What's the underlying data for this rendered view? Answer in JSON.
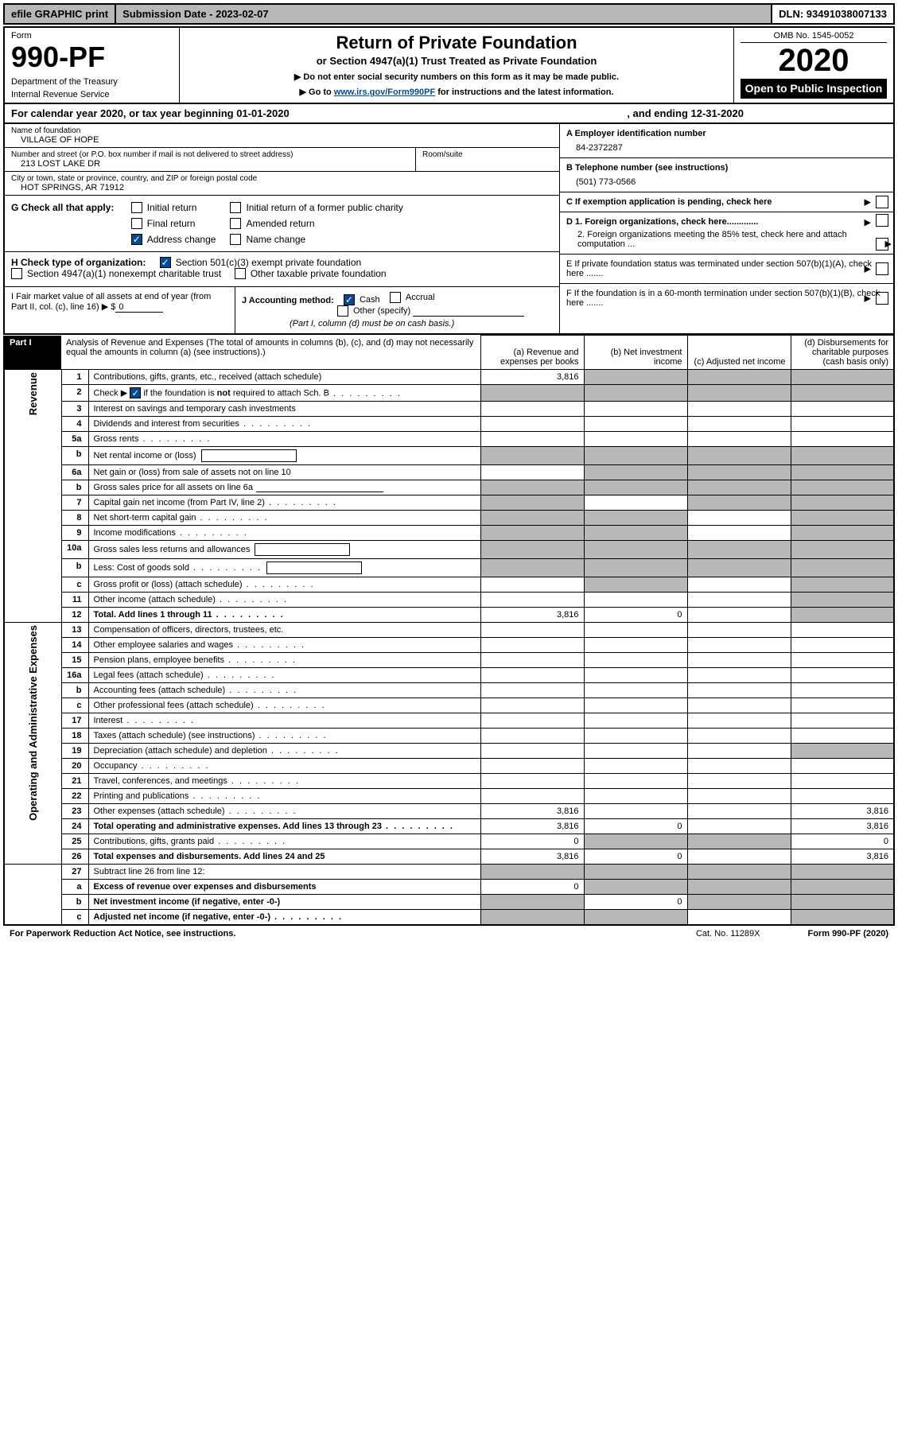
{
  "topbar": {
    "efile": "efile GRAPHIC print",
    "submission": "Submission Date - 2023-02-07",
    "dln": "DLN: 93491038007133"
  },
  "header": {
    "form_label": "Form",
    "form_number": "990-PF",
    "dept1": "Department of the Treasury",
    "dept2": "Internal Revenue Service",
    "title": "Return of Private Foundation",
    "subtitle": "or Section 4947(a)(1) Trust Treated as Private Foundation",
    "note1": "▶ Do not enter social security numbers on this form as it may be made public.",
    "note2_pre": "▶ Go to ",
    "note2_link": "www.irs.gov/Form990PF",
    "note2_post": " for instructions and the latest information.",
    "omb": "OMB No. 1545-0052",
    "year": "2020",
    "open": "Open to Public Inspection"
  },
  "calyear": {
    "text": "For calendar year 2020, or tax year beginning 01-01-2020",
    "ending": ", and ending 12-31-2020"
  },
  "info": {
    "name_lbl": "Name of foundation",
    "name": "VILLAGE OF HOPE",
    "addr_lbl": "Number and street (or P.O. box number if mail is not delivered to street address)",
    "addr": "213 LOST LAKE DR",
    "room_lbl": "Room/suite",
    "city_lbl": "City or town, state or province, country, and ZIP or foreign postal code",
    "city": "HOT SPRINGS, AR  71912",
    "a_lbl": "A Employer identification number",
    "a_val": "84-2372287",
    "b_lbl": "B Telephone number (see instructions)",
    "b_val": "(501) 773-0566",
    "c_lbl": "C If exemption application is pending, check here",
    "d1_lbl": "D 1. Foreign organizations, check here.............",
    "d2_lbl": "2. Foreign organizations meeting the 85% test, check here and attach computation ...",
    "e_lbl": "E  If private foundation status was terminated under section 507(b)(1)(A), check here .......",
    "f_lbl": "F  If the foundation is in a 60-month termination under section 507(b)(1)(B), check here .......",
    "g_lbl": "G Check all that apply:",
    "g_opts": {
      "initial": "Initial return",
      "initial_former": "Initial return of a former public charity",
      "final": "Final return",
      "amended": "Amended return",
      "address": "Address change",
      "name": "Name change"
    },
    "h_lbl": "H Check type of organization:",
    "h_opts": {
      "c3": "Section 501(c)(3) exempt private foundation",
      "a1": "Section 4947(a)(1) nonexempt charitable trust",
      "other": "Other taxable private foundation"
    },
    "i_lbl": "I Fair market value of all assets at end of year (from Part II, col. (c), line 16)  ▶ $",
    "i_val": "0",
    "j_lbl": "J Accounting method:",
    "j_cash": "Cash",
    "j_accrual": "Accrual",
    "j_other": "Other (specify)",
    "j_note": "(Part I, column (d) must be on cash basis.)"
  },
  "part1": {
    "tab": "Part I",
    "title": "Analysis of Revenue and Expenses",
    "note": "(The total of amounts in columns (b), (c), and (d) may not necessarily equal the amounts in column (a) (see instructions).)",
    "col_a": "(a)   Revenue and expenses per books",
    "col_b": "(b)   Net investment income",
    "col_c": "(c)   Adjusted net income",
    "col_d": "(d)   Disbursements for charitable purposes (cash basis only)"
  },
  "side": {
    "revenue": "Revenue",
    "expenses": "Operating and Administrative Expenses"
  },
  "rows": [
    {
      "n": "1",
      "d": "Contributions, gifts, grants, etc., received (attach schedule)",
      "a": "3,816",
      "shade_bcd": true
    },
    {
      "n": "2",
      "d": "Check ▶ ☑ if the foundation is not required to attach Sch. B",
      "dots": true,
      "shade_all": true,
      "checked": true
    },
    {
      "n": "3",
      "d": "Interest on savings and temporary cash investments"
    },
    {
      "n": "4",
      "d": "Dividends and interest from securities",
      "dots": true
    },
    {
      "n": "5a",
      "d": "Gross rents",
      "dots": true
    },
    {
      "n": "b",
      "d": "Net rental income or (loss)",
      "inner": true,
      "shade_all": true
    },
    {
      "n": "6a",
      "d": "Net gain or (loss) from sale of assets not on line 10",
      "shade_bcd": true
    },
    {
      "n": "b",
      "d": "Gross sales price for all assets on line 6a",
      "underline": true,
      "shade_all": true
    },
    {
      "n": "7",
      "d": "Capital gain net income (from Part IV, line 2)",
      "dots": true,
      "shade_a": true,
      "shade_cd": true
    },
    {
      "n": "8",
      "d": "Net short-term capital gain",
      "dots": true,
      "shade_ab": true,
      "shade_d": true
    },
    {
      "n": "9",
      "d": "Income modifications",
      "dots": true,
      "shade_ab": true,
      "shade_d": true
    },
    {
      "n": "10a",
      "d": "Gross sales less returns and allowances",
      "inner": true,
      "shade_all": true
    },
    {
      "n": "b",
      "d": "Less: Cost of goods sold",
      "dots": true,
      "inner": true,
      "shade_all": true
    },
    {
      "n": "c",
      "d": "Gross profit or (loss) (attach schedule)",
      "dots": true,
      "shade_b": true,
      "shade_d": true
    },
    {
      "n": "11",
      "d": "Other income (attach schedule)",
      "dots": true,
      "shade_d": true
    },
    {
      "n": "12",
      "d": "Total. Add lines 1 through 11",
      "dots": true,
      "bold": true,
      "a": "3,816",
      "b": "0",
      "shade_d": true
    }
  ],
  "exp_rows": [
    {
      "n": "13",
      "d": "Compensation of officers, directors, trustees, etc."
    },
    {
      "n": "14",
      "d": "Other employee salaries and wages",
      "dots": true
    },
    {
      "n": "15",
      "d": "Pension plans, employee benefits",
      "dots": true
    },
    {
      "n": "16a",
      "d": "Legal fees (attach schedule)",
      "dots": true
    },
    {
      "n": "b",
      "d": "Accounting fees (attach schedule)",
      "dots": true
    },
    {
      "n": "c",
      "d": "Other professional fees (attach schedule)",
      "dots": true
    },
    {
      "n": "17",
      "d": "Interest",
      "dots": true
    },
    {
      "n": "18",
      "d": "Taxes (attach schedule) (see instructions)",
      "dots": true
    },
    {
      "n": "19",
      "d": "Depreciation (attach schedule) and depletion",
      "dots": true,
      "shade_d": true
    },
    {
      "n": "20",
      "d": "Occupancy",
      "dots": true
    },
    {
      "n": "21",
      "d": "Travel, conferences, and meetings",
      "dots": true
    },
    {
      "n": "22",
      "d": "Printing and publications",
      "dots": true
    },
    {
      "n": "23",
      "d": "Other expenses (attach schedule)",
      "dots": true,
      "a": "3,816",
      "d_": "3,816"
    },
    {
      "n": "24",
      "d": "Total operating and administrative expenses. Add lines 13 through 23",
      "dots": true,
      "bold": true,
      "a": "3,816",
      "b": "0",
      "d_": "3,816"
    },
    {
      "n": "25",
      "d": "Contributions, gifts, grants paid",
      "dots": true,
      "a": "0",
      "shade_bc": true,
      "d_": "0"
    },
    {
      "n": "26",
      "d": "Total expenses and disbursements. Add lines 24 and 25",
      "bold": true,
      "a": "3,816",
      "b": "0",
      "d_": "3,816"
    }
  ],
  "final_rows": [
    {
      "n": "27",
      "d": "Subtract line 26 from line 12:",
      "shade_all": true
    },
    {
      "n": "a",
      "d": "Excess of revenue over expenses and disbursements",
      "bold": true,
      "a": "0",
      "shade_bcd": true
    },
    {
      "n": "b",
      "d": "Net investment income (if negative, enter -0-)",
      "bold": true,
      "shade_a": true,
      "b": "0",
      "shade_cd": true
    },
    {
      "n": "c",
      "d": "Adjusted net income (if negative, enter -0-)",
      "bold": true,
      "dots": true,
      "shade_ab": true,
      "shade_d": true
    }
  ],
  "footer": {
    "left": "For Paperwork Reduction Act Notice, see instructions.",
    "cat": "Cat. No. 11289X",
    "form": "Form 990-PF (2020)"
  },
  "colors": {
    "grey": "#b8b8b8",
    "link": "#004b8d",
    "black": "#000000"
  }
}
